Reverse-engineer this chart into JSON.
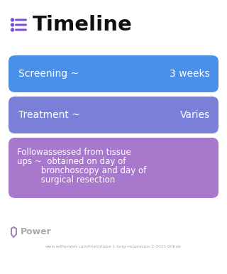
{
  "title": "Timeline",
  "bg_color": "#ffffff",
  "icon_color": "#7c4ddb",
  "title_color": "#111111",
  "cards": [
    {
      "label_left": "Screening ~",
      "label_right": "3 weeks",
      "color": "#4a90e8",
      "text_color": "#ffffff",
      "multiline": false,
      "lines": []
    },
    {
      "label_left": "Treatment ~",
      "label_right": "Varies",
      "color": "#7a80d8",
      "text_color": "#ffffff",
      "multiline": false,
      "lines": []
    },
    {
      "label_left": "",
      "label_right": "",
      "color": "#a878cc",
      "text_color": "#ffffff",
      "multiline": true,
      "lines": [
        "Followassessed from tissue",
        "ups ~  obtained on day of",
        "         bronchoscopy and day of",
        "         surgical resection"
      ]
    }
  ],
  "footer_text": "Power",
  "footer_url": "www.withpower.com/trial/phase-1-lung-neoplasms-2-2021-00bab",
  "footer_color": "#aaaaaa",
  "footer_icon_color": "#9b87b8"
}
